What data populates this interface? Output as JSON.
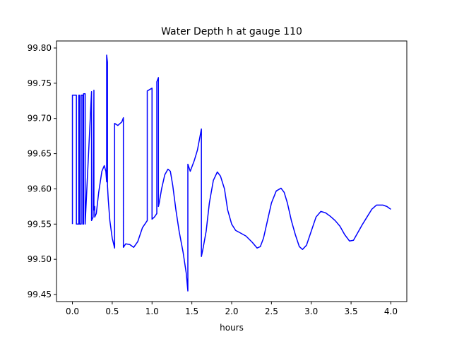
{
  "chart_data": {
    "type": "line",
    "title": "Water Depth h at gauge 110",
    "xlabel": "hours",
    "ylabel": "",
    "xlim": [
      -0.2,
      4.2
    ],
    "ylim": [
      99.44,
      99.81
    ],
    "xticks": [
      "0.0",
      "0.5",
      "1.0",
      "1.5",
      "2.0",
      "2.5",
      "3.0",
      "3.5",
      "4.0"
    ],
    "yticks": [
      "99.45",
      "99.50",
      "99.55",
      "99.60",
      "99.65",
      "99.70",
      "99.75",
      "99.80"
    ],
    "grid": false,
    "series": [
      {
        "color": "#0000ff",
        "x": [
          0.0,
          0.0,
          0.05,
          0.05,
          0.08,
          0.08,
          0.09,
          0.09,
          0.11,
          0.11,
          0.13,
          0.13,
          0.14,
          0.14,
          0.16,
          0.16,
          0.24,
          0.24,
          0.26,
          0.27,
          0.27,
          0.28,
          0.28,
          0.3,
          0.33,
          0.37,
          0.4,
          0.42,
          0.43,
          0.43,
          0.44,
          0.44,
          0.45,
          0.47,
          0.5,
          0.53,
          0.53,
          0.57,
          0.62,
          0.64,
          0.64,
          0.67,
          0.72,
          0.77,
          0.82,
          0.88,
          0.94,
          0.94,
          1.0,
          1.0,
          1.03,
          1.06,
          1.06,
          1.08,
          1.08,
          1.09,
          1.12,
          1.16,
          1.2,
          1.23,
          1.26,
          1.3,
          1.34,
          1.39,
          1.43,
          1.45,
          1.45,
          1.48,
          1.53,
          1.57,
          1.62,
          1.62,
          1.64,
          1.68,
          1.72,
          1.77,
          1.82,
          1.86,
          1.91,
          1.95,
          2.0,
          2.05,
          2.1,
          2.18,
          2.26,
          2.32,
          2.36,
          2.4,
          2.45,
          2.5,
          2.56,
          2.62,
          2.66,
          2.7,
          2.75,
          2.8,
          2.85,
          2.89,
          2.94,
          3.0,
          3.06,
          3.12,
          3.18,
          3.24,
          3.3,
          3.36,
          3.42,
          3.48,
          3.53,
          3.58,
          3.64,
          3.7,
          3.76,
          3.82,
          3.9,
          3.95,
          4.0
        ],
        "y": [
          99.55,
          99.733,
          99.733,
          99.55,
          99.55,
          99.733,
          99.733,
          99.55,
          99.55,
          99.733,
          99.733,
          99.55,
          99.55,
          99.735,
          99.735,
          99.55,
          99.738,
          99.555,
          99.56,
          99.74,
          99.57,
          99.575,
          99.56,
          99.565,
          99.595,
          99.625,
          99.633,
          99.625,
          99.61,
          99.79,
          99.78,
          99.605,
          99.585,
          99.555,
          99.53,
          99.516,
          99.693,
          99.69,
          99.695,
          99.701,
          99.517,
          99.522,
          99.521,
          99.517,
          99.525,
          99.545,
          99.555,
          99.739,
          99.743,
          99.557,
          99.56,
          99.565,
          99.752,
          99.758,
          99.575,
          99.58,
          99.6,
          99.62,
          99.628,
          99.625,
          99.605,
          99.57,
          99.54,
          99.51,
          99.48,
          99.455,
          99.635,
          99.625,
          99.64,
          99.655,
          99.685,
          99.504,
          99.515,
          99.54,
          99.58,
          99.612,
          99.624,
          99.618,
          99.6,
          99.57,
          99.55,
          99.541,
          99.538,
          99.533,
          99.524,
          99.516,
          99.518,
          99.53,
          99.555,
          99.58,
          99.597,
          99.601,
          99.595,
          99.58,
          99.555,
          99.535,
          99.518,
          99.514,
          99.52,
          99.54,
          99.56,
          99.568,
          99.566,
          99.561,
          99.555,
          99.547,
          99.535,
          99.526,
          99.527,
          99.537,
          99.549,
          99.56,
          99.571,
          99.577,
          99.577,
          99.575,
          99.571
        ]
      }
    ]
  }
}
